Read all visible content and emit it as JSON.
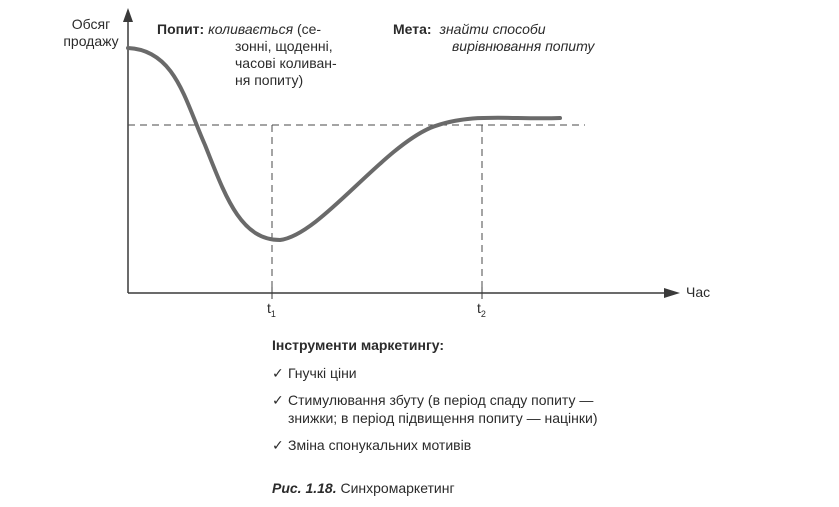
{
  "axes": {
    "y_label_line1": "Обсяг",
    "y_label_line2": "продажу",
    "x_label": "Час",
    "tick_t1_main": "t",
    "tick_t1_sub": "1",
    "tick_t2_main": "t",
    "tick_t2_sub": "2"
  },
  "demand": {
    "label": "Попит:",
    "italic": "коливається",
    "line1_rest": "(се-",
    "line2": "зонні, щоденні,",
    "line3": "часові коливан-",
    "line4": "ня попиту)"
  },
  "goal": {
    "label": "Мета:",
    "line1": "знайти способи",
    "line2": "вирівнювання попиту"
  },
  "tools": {
    "heading": "Інструменти маркетингу:",
    "check_glyph": "✓",
    "item1": "Гнучкі ціни",
    "item2_line1": "Стимулювання збуту (в період спаду попиту —",
    "item2_line2": "знижки; в період підвищення попиту — націнки)",
    "item3": "Зміна спонукальних мотивів"
  },
  "caption": {
    "number": "Рис. 1.18.",
    "title": "Синхромаркетинг"
  },
  "colors": {
    "curve": "#6a6a6a",
    "axis": "#3a3a3a",
    "dashed": "#4a4a4a",
    "text": "#2b2b2b"
  }
}
